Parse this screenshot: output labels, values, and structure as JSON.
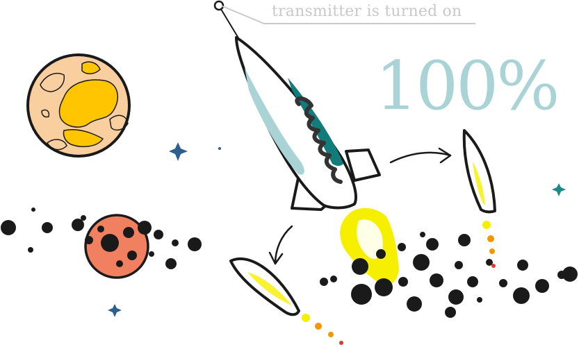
{
  "status": {
    "caption": "transmitter is turned on",
    "progress_label": "100%",
    "progress_value": 100
  },
  "colors": {
    "outline": "#1a1a1a",
    "planet_sand": "#f9cfa0",
    "planet_sand_spots": "#ffc600",
    "planet_red": "#f08060",
    "rocket_body": "#ffffff",
    "rocket_teal": "#127b7b",
    "rocket_light_teal": "#a9d3d4",
    "flame_yellow": "#f7ef00",
    "flame_orange": "#f29700",
    "flame_red": "#e03a2a",
    "star_blue": "#2c5f8f",
    "star_teal": "#1a8a8a",
    "caption_gray": "#c9c9c9"
  },
  "icons": [
    "antenna-icon",
    "rocket-icon",
    "booster-icon",
    "planet-icon",
    "asteroid-icon",
    "star-icon",
    "arrow-icon",
    "explosion-icon"
  ]
}
